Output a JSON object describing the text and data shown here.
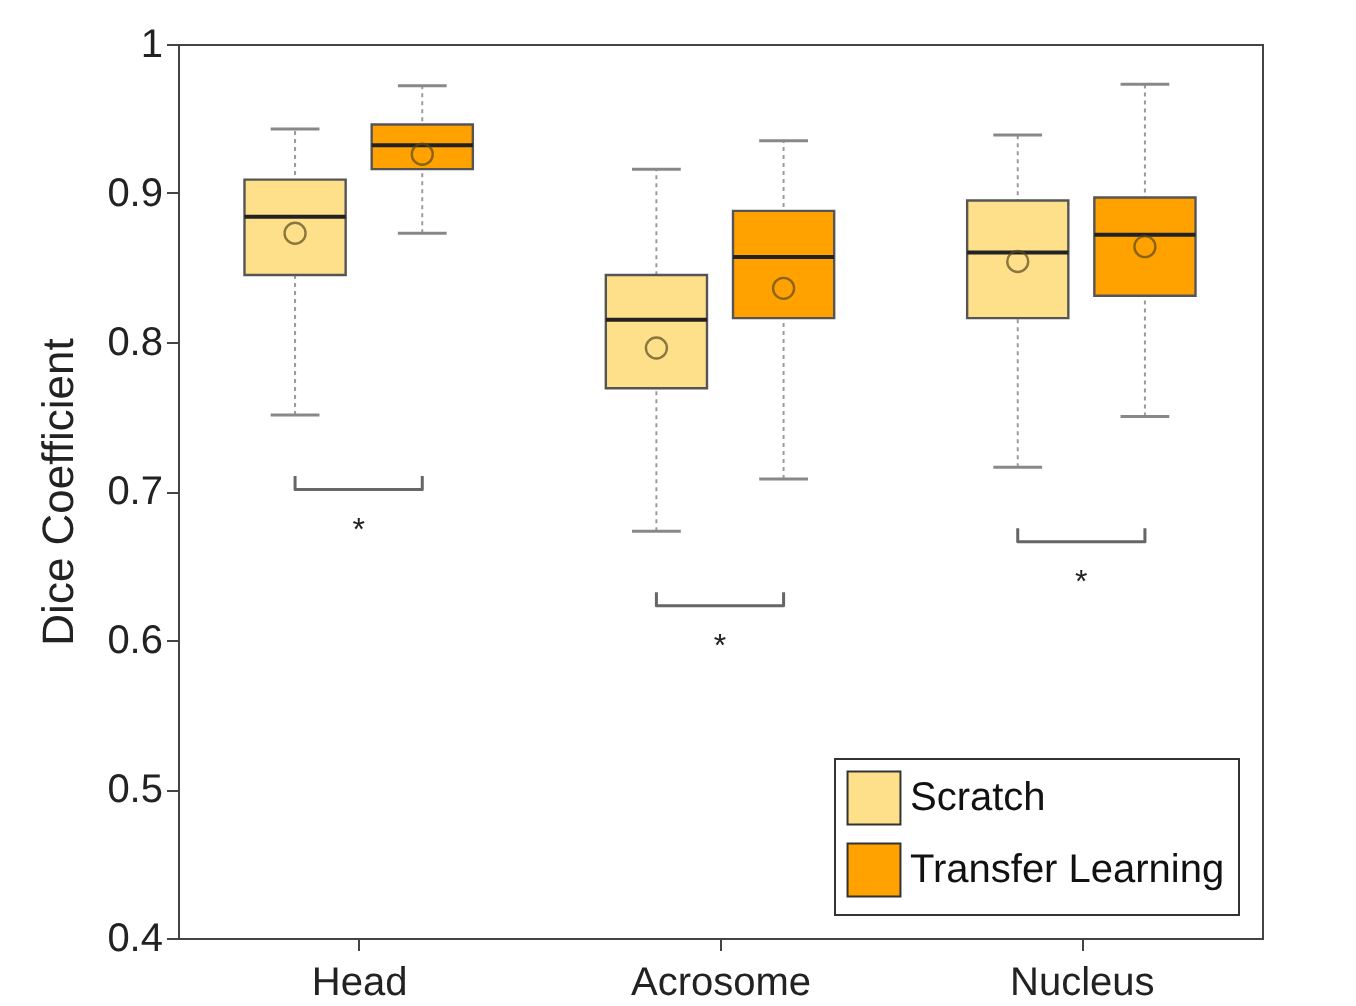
{
  "chart_data": {
    "type": "box",
    "ylabel": "Dice Coefficient",
    "categories": [
      "Head",
      "Acrosome",
      "Nucleus"
    ],
    "series": [
      {
        "name": "Scratch",
        "color": "#ffe08a",
        "boxes": [
          {
            "low": 0.751,
            "q1": 0.845,
            "median": 0.884,
            "q3": 0.909,
            "high": 0.943,
            "mean": 0.873
          },
          {
            "low": 0.673,
            "q1": 0.769,
            "median": 0.815,
            "q3": 0.845,
            "high": 0.916,
            "mean": 0.796
          },
          {
            "low": 0.716,
            "q1": 0.816,
            "median": 0.86,
            "q3": 0.895,
            "high": 0.939,
            "mean": 0.854
          }
        ]
      },
      {
        "name": "Transfer Learning",
        "color": "#ffa200",
        "boxes": [
          {
            "low": 0.873,
            "q1": 0.916,
            "median": 0.932,
            "q3": 0.946,
            "high": 0.972,
            "mean": 0.926
          },
          {
            "low": 0.708,
            "q1": 0.816,
            "median": 0.857,
            "q3": 0.888,
            "high": 0.935,
            "mean": 0.836
          },
          {
            "low": 0.75,
            "q1": 0.831,
            "median": 0.872,
            "q3": 0.897,
            "high": 0.973,
            "mean": 0.864
          }
        ]
      }
    ],
    "ylim": [
      0.4,
      1
    ],
    "yticks": [
      0.4,
      0.5,
      0.6,
      0.7,
      0.8,
      0.9,
      1
    ],
    "grid": false,
    "legend": "bottom right",
    "annotations": [
      "*",
      "*",
      "*"
    ]
  }
}
